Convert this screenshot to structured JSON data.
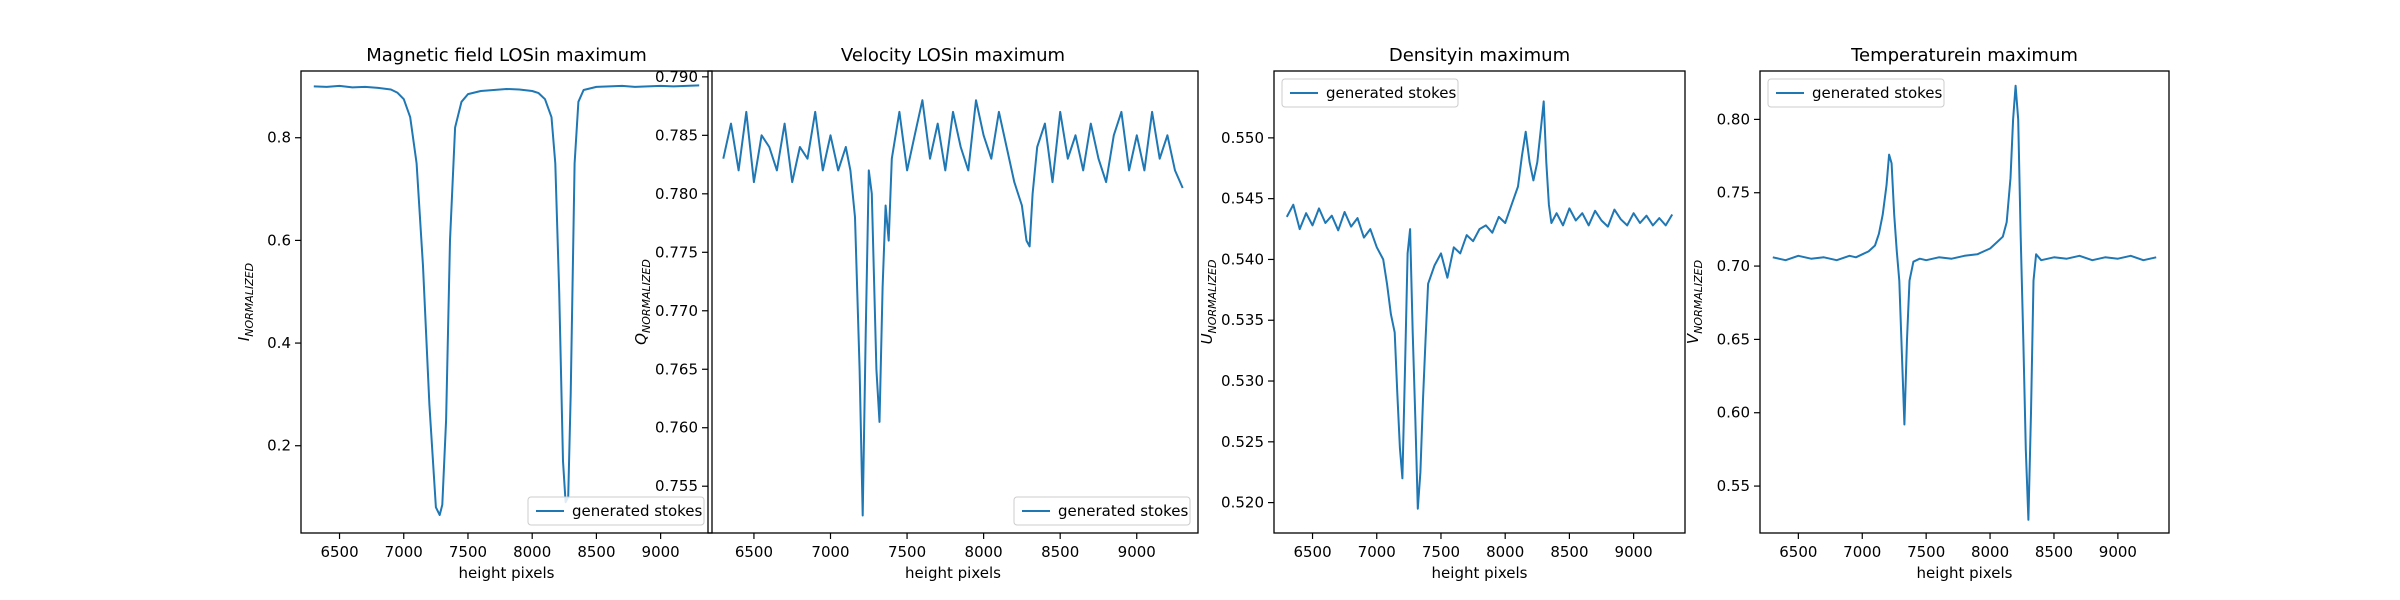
{
  "colors": {
    "series": "#1f77b4",
    "frame": "#000000",
    "background": "#ffffff"
  },
  "chart_data": [
    {
      "type": "line",
      "title": "Magnetic field LOSin maximum",
      "xlabel": "height pixels",
      "ylabel_main": "I",
      "ylabel_sub": "NORMALIZED",
      "xlim": [
        6200,
        9400
      ],
      "ylim": [
        0.03,
        0.93
      ],
      "xticks": [
        6500,
        7000,
        7500,
        8000,
        8500,
        9000
      ],
      "yticks": [
        0.2,
        0.4,
        0.6,
        0.8
      ],
      "ytick_labels": [
        "0.2",
        "0.4",
        "0.6",
        "0.8"
      ],
      "legend": {
        "label": "generated stokes",
        "position": "lower-right"
      },
      "series": [
        {
          "name": "generated stokes",
          "x": [
            6300,
            6400,
            6500,
            6600,
            6700,
            6800,
            6900,
            6950,
            7000,
            7050,
            7100,
            7150,
            7200,
            7250,
            7280,
            7300,
            7330,
            7360,
            7400,
            7450,
            7500,
            7600,
            7700,
            7800,
            7900,
            8000,
            8050,
            8100,
            8150,
            8180,
            8210,
            8240,
            8260,
            8280,
            8300,
            8330,
            8360,
            8400,
            8500,
            8600,
            8700,
            8800,
            8900,
            9000,
            9100,
            9200,
            9300
          ],
          "y": [
            0.9,
            0.899,
            0.901,
            0.898,
            0.899,
            0.897,
            0.894,
            0.888,
            0.875,
            0.84,
            0.75,
            0.55,
            0.28,
            0.08,
            0.065,
            0.085,
            0.25,
            0.6,
            0.82,
            0.87,
            0.885,
            0.891,
            0.893,
            0.895,
            0.894,
            0.891,
            0.887,
            0.875,
            0.84,
            0.75,
            0.5,
            0.17,
            0.09,
            0.1,
            0.3,
            0.75,
            0.87,
            0.893,
            0.899,
            0.9,
            0.901,
            0.899,
            0.9,
            0.901,
            0.9,
            0.901,
            0.902
          ]
        }
      ]
    },
    {
      "type": "line",
      "title": "Velocity LOSin maximum",
      "xlabel": "height pixels",
      "ylabel_main": "Q",
      "ylabel_sub": "NORMALIZED",
      "xlim": [
        6200,
        9400
      ],
      "ylim": [
        0.751,
        0.7905
      ],
      "xticks": [
        6500,
        7000,
        7500,
        8000,
        8500,
        9000
      ],
      "yticks": [
        0.755,
        0.76,
        0.765,
        0.77,
        0.775,
        0.78,
        0.785,
        0.79
      ],
      "ytick_labels": [
        "0.755",
        "0.760",
        "0.765",
        "0.770",
        "0.775",
        "0.780",
        "0.785",
        "0.790"
      ],
      "legend": {
        "label": "generated stokes",
        "position": "lower-right"
      },
      "series": [
        {
          "name": "generated stokes",
          "x": [
            6300,
            6350,
            6400,
            6450,
            6500,
            6550,
            6600,
            6650,
            6700,
            6750,
            6800,
            6850,
            6900,
            6950,
            7000,
            7050,
            7100,
            7130,
            7160,
            7190,
            7210,
            7230,
            7250,
            7270,
            7300,
            7320,
            7340,
            7360,
            7380,
            7400,
            7450,
            7500,
            7550,
            7600,
            7650,
            7700,
            7750,
            7800,
            7850,
            7900,
            7950,
            8000,
            8050,
            8100,
            8150,
            8200,
            8250,
            8280,
            8300,
            8320,
            8350,
            8400,
            8450,
            8500,
            8550,
            8600,
            8650,
            8700,
            8750,
            8800,
            8850,
            8900,
            8950,
            9000,
            9050,
            9100,
            9150,
            9200,
            9250,
            9300
          ],
          "y": [
            0.783,
            0.786,
            0.782,
            0.787,
            0.781,
            0.785,
            0.784,
            0.782,
            0.786,
            0.781,
            0.784,
            0.783,
            0.787,
            0.782,
            0.785,
            0.782,
            0.784,
            0.782,
            0.778,
            0.765,
            0.7525,
            0.768,
            0.782,
            0.78,
            0.765,
            0.7605,
            0.772,
            0.779,
            0.776,
            0.783,
            0.787,
            0.782,
            0.785,
            0.788,
            0.783,
            0.786,
            0.782,
            0.787,
            0.784,
            0.782,
            0.788,
            0.785,
            0.783,
            0.787,
            0.784,
            0.781,
            0.779,
            0.776,
            0.7755,
            0.78,
            0.784,
            0.786,
            0.781,
            0.787,
            0.783,
            0.785,
            0.782,
            0.786,
            0.783,
            0.781,
            0.785,
            0.787,
            0.782,
            0.785,
            0.782,
            0.787,
            0.783,
            0.785,
            0.782,
            0.7805
          ]
        }
      ]
    },
    {
      "type": "line",
      "title": "Densityin maximum",
      "xlabel": "height pixels",
      "ylabel_main": "U",
      "ylabel_sub": "NORMALIZED",
      "xlim": [
        6200,
        9400
      ],
      "ylim": [
        0.5175,
        0.5555
      ],
      "xticks": [
        6500,
        7000,
        7500,
        8000,
        8500,
        9000
      ],
      "yticks": [
        0.52,
        0.525,
        0.53,
        0.535,
        0.54,
        0.545,
        0.55
      ],
      "ytick_labels": [
        "0.520",
        "0.525",
        "0.530",
        "0.535",
        "0.540",
        "0.545",
        "0.550"
      ],
      "legend": {
        "label": "generated stokes",
        "position": "upper-left"
      },
      "series": [
        {
          "name": "generated stokes",
          "x": [
            6300,
            6350,
            6400,
            6450,
            6500,
            6550,
            6600,
            6650,
            6700,
            6750,
            6800,
            6850,
            6900,
            6950,
            7000,
            7050,
            7080,
            7110,
            7140,
            7160,
            7180,
            7200,
            7220,
            7240,
            7260,
            7280,
            7300,
            7320,
            7340,
            7360,
            7380,
            7400,
            7450,
            7500,
            7550,
            7600,
            7650,
            7700,
            7750,
            7800,
            7850,
            7900,
            7950,
            8000,
            8050,
            8100,
            8130,
            8160,
            8190,
            8220,
            8250,
            8280,
            8300,
            8320,
            8340,
            8360,
            8400,
            8450,
            8500,
            8550,
            8600,
            8650,
            8700,
            8750,
            8800,
            8850,
            8900,
            8950,
            9000,
            9050,
            9100,
            9150,
            9200,
            9250,
            9300
          ],
          "y": [
            0.5435,
            0.5445,
            0.5425,
            0.5438,
            0.5428,
            0.5442,
            0.543,
            0.5436,
            0.5424,
            0.5439,
            0.5427,
            0.5434,
            0.5418,
            0.5425,
            0.541,
            0.54,
            0.538,
            0.5355,
            0.534,
            0.529,
            0.5245,
            0.522,
            0.531,
            0.5405,
            0.5425,
            0.534,
            0.527,
            0.5195,
            0.5225,
            0.5285,
            0.5335,
            0.538,
            0.5395,
            0.5405,
            0.5385,
            0.541,
            0.5405,
            0.542,
            0.5415,
            0.5425,
            0.5428,
            0.5422,
            0.5435,
            0.543,
            0.5445,
            0.546,
            0.5485,
            0.5505,
            0.548,
            0.5465,
            0.548,
            0.551,
            0.553,
            0.548,
            0.5445,
            0.543,
            0.5438,
            0.5428,
            0.5442,
            0.5432,
            0.5438,
            0.5428,
            0.544,
            0.5432,
            0.5427,
            0.5441,
            0.5433,
            0.5428,
            0.5438,
            0.543,
            0.5436,
            0.5428,
            0.5434,
            0.5428,
            0.5437
          ]
        }
      ]
    },
    {
      "type": "line",
      "title": "Temperaturein maximum",
      "xlabel": "height pixels",
      "ylabel_main": "V",
      "ylabel_sub": "NORMALIZED",
      "xlim": [
        6200,
        9400
      ],
      "ylim": [
        0.518,
        0.833
      ],
      "xticks": [
        6500,
        7000,
        7500,
        8000,
        8500,
        9000
      ],
      "yticks": [
        0.55,
        0.6,
        0.65,
        0.7,
        0.75,
        0.8
      ],
      "ytick_labels": [
        "0.55",
        "0.60",
        "0.65",
        "0.70",
        "0.75",
        "0.80"
      ],
      "legend": {
        "label": "generated stokes",
        "position": "upper-left"
      },
      "series": [
        {
          "name": "generated stokes",
          "x": [
            6300,
            6400,
            6500,
            6600,
            6700,
            6800,
            6900,
            6950,
            7000,
            7050,
            7100,
            7130,
            7160,
            7190,
            7210,
            7230,
            7250,
            7270,
            7290,
            7310,
            7330,
            7350,
            7370,
            7400,
            7450,
            7500,
            7600,
            7700,
            7800,
            7900,
            7950,
            8000,
            8050,
            8100,
            8130,
            8160,
            8180,
            8200,
            8220,
            8240,
            8260,
            8280,
            8300,
            8320,
            8340,
            8360,
            8400,
            8500,
            8600,
            8700,
            8800,
            8900,
            9000,
            9100,
            9200,
            9300
          ],
          "y": [
            0.706,
            0.704,
            0.707,
            0.705,
            0.706,
            0.704,
            0.707,
            0.706,
            0.708,
            0.71,
            0.714,
            0.722,
            0.735,
            0.755,
            0.776,
            0.77,
            0.735,
            0.71,
            0.69,
            0.64,
            0.592,
            0.65,
            0.69,
            0.703,
            0.705,
            0.704,
            0.706,
            0.705,
            0.707,
            0.708,
            0.71,
            0.712,
            0.716,
            0.72,
            0.73,
            0.76,
            0.8,
            0.823,
            0.8,
            0.72,
            0.65,
            0.575,
            0.527,
            0.6,
            0.69,
            0.708,
            0.704,
            0.706,
            0.705,
            0.707,
            0.704,
            0.706,
            0.705,
            0.707,
            0.704,
            0.706
          ]
        }
      ]
    }
  ]
}
